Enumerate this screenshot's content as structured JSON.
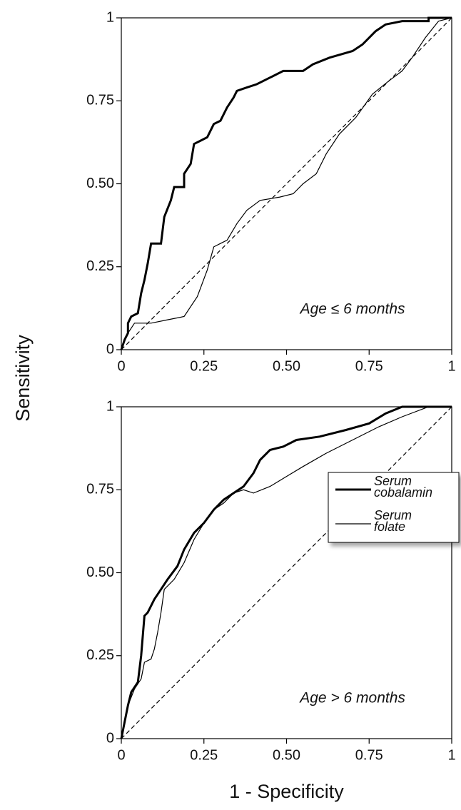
{
  "chart_data": [
    {
      "type": "line",
      "ylabel": "Sensitivity",
      "annotation": "Age ≤ 6 months",
      "xlim": [
        0,
        1
      ],
      "ylim": [
        0,
        1
      ],
      "xticks": [
        0,
        0.25,
        {
          "value": 0.5,
          "label": "0.50"
        },
        0.75,
        1
      ],
      "yticks": [
        0,
        0.25,
        {
          "value": 0.5,
          "label": "0.50"
        },
        0.75,
        1
      ],
      "reference_line": true,
      "series": [
        {
          "color": "#000000",
          "line_width": 3,
          "x": [
            0,
            0.01,
            0.02,
            0.02,
            0.03,
            0.05,
            0.06,
            0.07,
            0.08,
            0.09,
            0.12,
            0.13,
            0.15,
            0.16,
            0.19,
            0.19,
            0.21,
            0.22,
            0.24,
            0.26,
            0.28,
            0.3,
            0.32,
            0.34,
            0.35,
            0.38,
            0.41,
            0.45,
            0.49,
            0.55,
            0.58,
            0.63,
            0.7,
            0.73,
            0.77,
            0.8,
            0.85,
            0.93,
            0.93,
            1
          ],
          "values": [
            0,
            0.03,
            0.05,
            0.08,
            0.1,
            0.11,
            0.17,
            0.21,
            0.26,
            0.32,
            0.32,
            0.4,
            0.45,
            0.49,
            0.49,
            0.53,
            0.56,
            0.62,
            0.63,
            0.64,
            0.68,
            0.69,
            0.73,
            0.76,
            0.78,
            0.79,
            0.8,
            0.82,
            0.84,
            0.84,
            0.86,
            0.88,
            0.9,
            0.92,
            0.96,
            0.98,
            0.99,
            0.99,
            1,
            1
          ]
        },
        {
          "color": "#000000",
          "line_width": 1.2,
          "x": [
            0,
            0.02,
            0.04,
            0.09,
            0.14,
            0.19,
            0.23,
            0.26,
            0.28,
            0.3,
            0.32,
            0.35,
            0.38,
            0.42,
            0.48,
            0.52,
            0.55,
            0.59,
            0.62,
            0.66,
            0.71,
            0.76,
            0.81,
            0.85,
            0.88,
            0.92,
            0.96,
            1
          ],
          "values": [
            0,
            0.05,
            0.08,
            0.08,
            0.09,
            0.1,
            0.16,
            0.24,
            0.31,
            0.32,
            0.33,
            0.38,
            0.42,
            0.45,
            0.46,
            0.47,
            0.5,
            0.53,
            0.59,
            0.65,
            0.7,
            0.77,
            0.81,
            0.84,
            0.88,
            0.94,
            0.99,
            1
          ]
        }
      ]
    },
    {
      "type": "line",
      "xlabel": "1 - Specificity",
      "annotation": "Age > 6 months",
      "xlim": [
        0,
        1
      ],
      "ylim": [
        0,
        1
      ],
      "xticks": [
        0,
        0.25,
        {
          "value": 0.5,
          "label": "0.50"
        },
        0.75,
        1
      ],
      "yticks": [
        0,
        0.25,
        {
          "value": 0.5,
          "label": "0.50"
        },
        0.75,
        1
      ],
      "reference_line": true,
      "legend": "right",
      "series": [
        {
          "name": "Serum cobalamin",
          "color": "#000000",
          "line_width": 3,
          "x": [
            0,
            0.01,
            0.02,
            0.03,
            0.05,
            0.06,
            0.07,
            0.08,
            0.1,
            0.12,
            0.14,
            0.17,
            0.19,
            0.22,
            0.25,
            0.28,
            0.31,
            0.34,
            0.37,
            0.4,
            0.42,
            0.45,
            0.49,
            0.53,
            0.6,
            0.68,
            0.75,
            0.8,
            0.85,
            1
          ],
          "values": [
            0,
            0.05,
            0.1,
            0.14,
            0.17,
            0.25,
            0.37,
            0.38,
            0.42,
            0.45,
            0.48,
            0.52,
            0.57,
            0.62,
            0.65,
            0.69,
            0.72,
            0.74,
            0.76,
            0.8,
            0.84,
            0.87,
            0.88,
            0.9,
            0.91,
            0.93,
            0.95,
            0.98,
            1,
            1
          ]
        },
        {
          "name": "Serum folate",
          "color": "#000000",
          "line_width": 1.2,
          "x": [
            0,
            0.02,
            0.04,
            0.06,
            0.07,
            0.09,
            0.1,
            0.11,
            0.12,
            0.13,
            0.16,
            0.19,
            0.22,
            0.25,
            0.28,
            0.31,
            0.34,
            0.37,
            0.4,
            0.45,
            0.5,
            0.55,
            0.62,
            0.7,
            0.78,
            0.85,
            0.93,
            1
          ],
          "values": [
            0,
            0.1,
            0.15,
            0.18,
            0.23,
            0.24,
            0.27,
            0.32,
            0.38,
            0.45,
            0.48,
            0.53,
            0.6,
            0.65,
            0.69,
            0.71,
            0.74,
            0.75,
            0.74,
            0.76,
            0.79,
            0.82,
            0.86,
            0.9,
            0.94,
            0.97,
            1,
            1
          ]
        }
      ]
    }
  ]
}
